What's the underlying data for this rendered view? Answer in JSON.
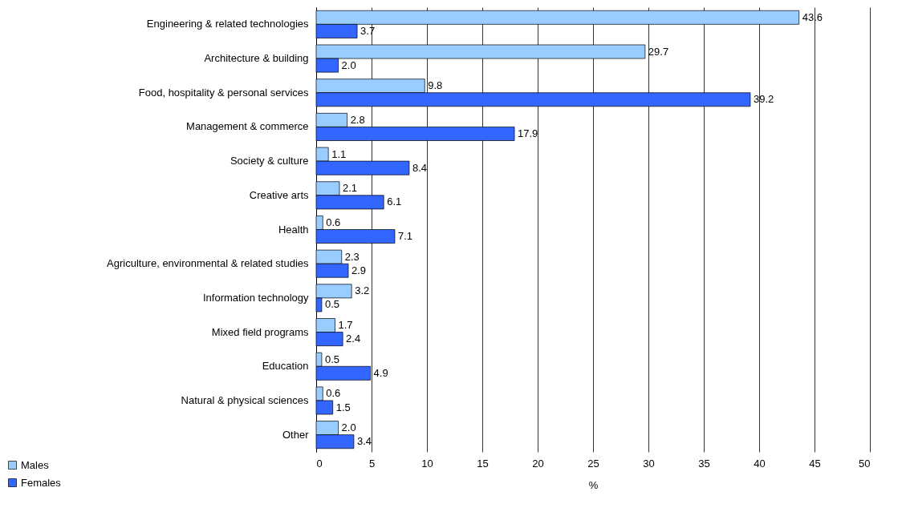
{
  "chart_data": {
    "type": "bar",
    "orientation": "horizontal",
    "xlabel": "%",
    "categories": [
      "Engineering & related technologies",
      "Architecture & building",
      "Food, hospitality & personal services",
      "Management & commerce",
      "Society & culture",
      "Creative arts",
      "Health",
      "Agriculture, environmental & related studies",
      "Information technology",
      "Mixed field programs",
      "Education",
      "Natural & physical sciences",
      "Other"
    ],
    "series": [
      {
        "name": "Males",
        "color": "#99ccff",
        "values": [
          43.6,
          29.7,
          9.8,
          2.8,
          1.1,
          2.1,
          0.6,
          2.3,
          3.2,
          1.7,
          0.5,
          0.6,
          2.0
        ],
        "value_labels": [
          "43.6",
          "29.7",
          "9.8",
          "2.8",
          "1.1",
          "2.1",
          "0.6",
          "2.3",
          "3.2",
          "1.7",
          "0.5",
          "0.6",
          "2.0"
        ]
      },
      {
        "name": "Females",
        "color": "#3366ff",
        "values": [
          3.7,
          2.0,
          39.2,
          17.9,
          8.4,
          6.1,
          7.1,
          2.9,
          0.5,
          2.4,
          4.9,
          1.5,
          3.4
        ],
        "value_labels": [
          "3.7",
          "2.0",
          "39.2",
          "17.9",
          "8.4",
          "6.1",
          "7.1",
          "2.9",
          "0.5",
          "2.4",
          "4.9",
          "1.5",
          "3.4"
        ]
      }
    ],
    "xlim": [
      0,
      50
    ],
    "xticks": [
      0,
      5,
      10,
      15,
      20,
      25,
      30,
      35,
      40,
      45,
      50
    ],
    "grid": "x",
    "legend": "bottom left"
  }
}
